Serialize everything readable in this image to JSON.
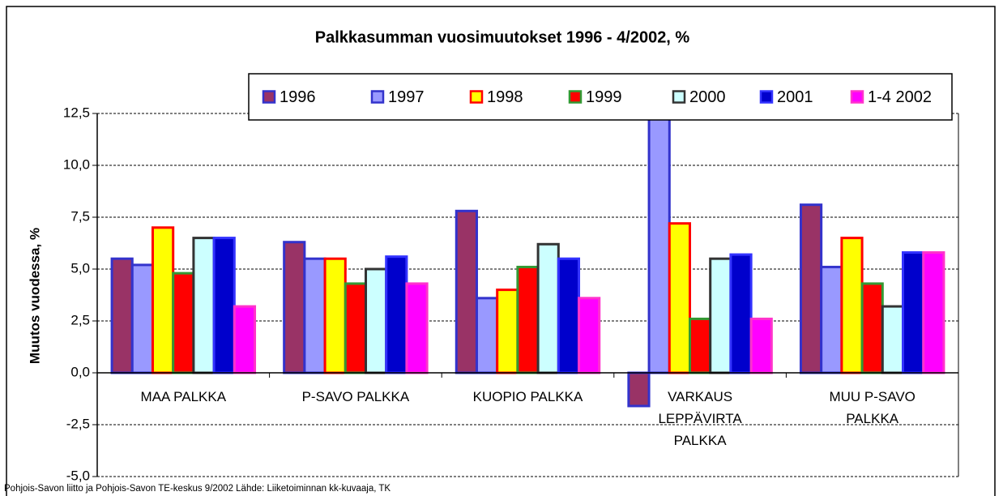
{
  "chart_data": {
    "type": "bar",
    "title": "Palkkasumman vuosimuutokset 1996 - 4/2002, %",
    "y_label": "Muutos vuodessa, %",
    "footer": "Pohjois-Savon liitto ja Pohjois-Savon TE-keskus 9/2002     Lähde: Liiketoiminnan kk-kuvaaja, TK",
    "categories": [
      "MAA PALKKA",
      "P-SAVO PALKKA",
      "KUOPIO PALKKA",
      "VARKAUS\nLEPPÄVIRTA\nPALKKA",
      "MUU P-SAVO\nPALKKA"
    ],
    "series": [
      {
        "name": "1996",
        "color": "#993366",
        "border": "#3333cc",
        "values": [
          5.5,
          6.3,
          7.8,
          -1.6,
          8.1
        ]
      },
      {
        "name": "1997",
        "color": "#9999ff",
        "border": "#3333cc",
        "values": [
          5.2,
          5.5,
          3.6,
          12.5,
          5.1
        ]
      },
      {
        "name": "1998",
        "color": "#ffff00",
        "border": "#ff0000",
        "values": [
          7.0,
          5.5,
          4.0,
          7.2,
          6.5
        ]
      },
      {
        "name": "1999",
        "color": "#ff0000",
        "border": "#339933",
        "values": [
          4.8,
          4.3,
          5.1,
          2.6,
          4.3
        ]
      },
      {
        "name": "2000",
        "color": "#ccffff",
        "border": "#333333",
        "values": [
          6.5,
          5.0,
          6.2,
          5.5,
          3.2
        ]
      },
      {
        "name": "2001",
        "color": "#0000cc",
        "border": "#3333ff",
        "values": [
          6.5,
          5.6,
          5.5,
          5.7,
          5.8
        ]
      },
      {
        "name": "1-4 2002",
        "color": "#ff00ff",
        "border": "#ff33cc",
        "values": [
          3.2,
          4.3,
          3.6,
          2.6,
          5.8
        ]
      }
    ],
    "ylim": [
      -5,
      12.5
    ],
    "yticks": [
      {
        "value": -5,
        "label": "-5,0"
      },
      {
        "value": -2.5,
        "label": "-2,5"
      },
      {
        "value": 0,
        "label": "0,0"
      },
      {
        "value": 2.5,
        "label": "2,5"
      },
      {
        "value": 5,
        "label": "5,0"
      },
      {
        "value": 7.5,
        "label": "7,5"
      },
      {
        "value": 10,
        "label": "10,0"
      },
      {
        "value": 12.5,
        "label": "12,5"
      }
    ],
    "grid": true,
    "legend": "top"
  }
}
